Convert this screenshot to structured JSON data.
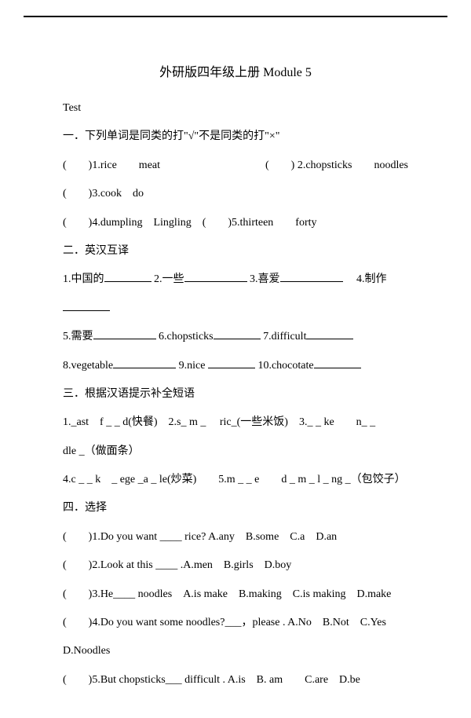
{
  "header": {
    "title": "外研版四年级上册  Module  5"
  },
  "test_label": "Test",
  "sections": {
    "s1": {
      "heading": "一．下列单词是同类的打\"√\"不是同类的打\"×\"",
      "q1": "(　　)1.rice　　meat",
      "q2": "(　　) 2.chopsticks　　noodles",
      "q3": "(　　)3.cook　do",
      "q4": "(　　)4.dumpling　Lingling　(　　)5.thirteen　　forty"
    },
    "s2": {
      "heading": "二．英汉互译",
      "q1a": "1.中国的",
      "q1b": "2.一些",
      "q1c": "3.喜爱",
      "q1d": "4.制作",
      "q2a": "5.需要",
      "q2b": "6.chopsticks",
      "q2c": "7.difficult",
      "q3a": "8.vegetable",
      "q3b": "9.nice",
      "q3c": "10.chocotate"
    },
    "s3": {
      "heading": "三．根据汉语提示补全短语",
      "q1": "1._ast　f _ _ d(快餐)　2.s_ m _　 ric_(一些米饭)　3._ _ ke　　n_ _",
      "q1b": "dle _（做面条）",
      "q2": "4.c _ _ k　_ ege _a _ le(炒菜)　　5.m _ _ e　　d _ m _ l _ ng _（包饺子）"
    },
    "s4": {
      "heading": "四．选择",
      "q1": "(　　)1.Do you want ____ rice? A.any　B.some　C.a　D.an",
      "q2": "(　　)2.Look at this ____ .A.men　B.girls　D.boy",
      "q3": "(　　)3.He____ noodles　A.is make　B.making　C.is making　D.make",
      "q4": "(　　)4.Do you want some noodles?___，please . A.No　B.Not　C.Yes",
      "q4b": "D.Noodles",
      "q5": "(　　)5.But chopsticks___ difficult . A.is　B. am　　C.are　D.be"
    }
  }
}
